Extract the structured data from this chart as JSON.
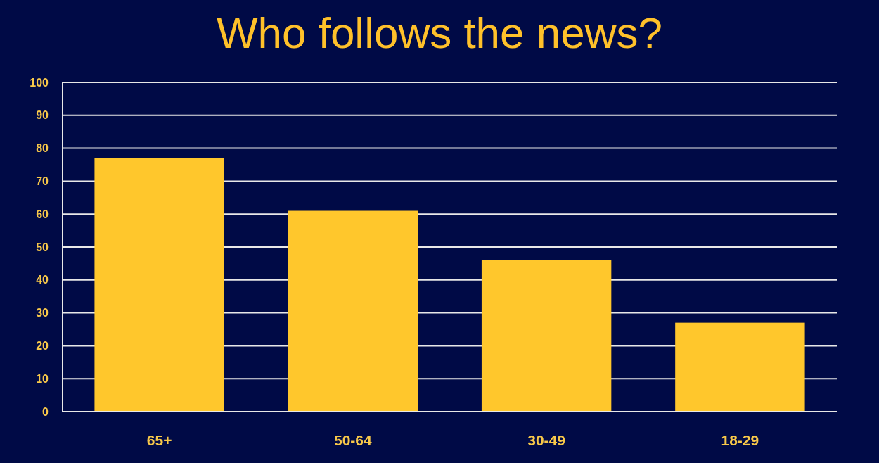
{
  "chart_data": {
    "type": "bar",
    "title": "Who follows the news?",
    "categories": [
      "65+",
      "50-64",
      "30-49",
      "18-29"
    ],
    "values": [
      77,
      61,
      46,
      27
    ],
    "color": "#ffc72c",
    "ylim": [
      0,
      100
    ],
    "yticks": [
      0,
      10,
      20,
      30,
      40,
      50,
      60,
      70,
      80,
      90,
      100
    ],
    "grid": "y"
  }
}
